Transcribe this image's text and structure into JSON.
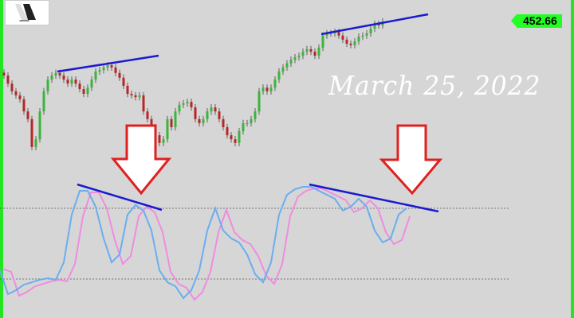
{
  "chart_data": {
    "type": "candlestick",
    "last_price": "452.66",
    "closes": [
      437.9,
      435.7,
      433.6,
      432.5,
      431.4,
      428.1,
      426.0,
      418.4,
      420.5,
      428.1,
      433.6,
      436.8,
      437.9,
      438.6,
      437.9,
      436.8,
      435.7,
      436.8,
      435.7,
      434.2,
      432.9,
      434.6,
      436.8,
      439.0,
      439.4,
      440.1,
      440.7,
      440.1,
      438.6,
      437.3,
      435.1,
      432.9,
      432.5,
      432.0,
      432.5,
      428.1,
      426.0,
      423.8,
      421.6,
      419.5,
      420.5,
      426.0,
      423.8,
      428.1,
      429.9,
      430.3,
      430.7,
      429.2,
      426.0,
      424.9,
      426.0,
      428.1,
      429.2,
      428.1,
      426.0,
      423.8,
      421.6,
      420.5,
      419.5,
      422.7,
      424.9,
      424.9,
      426.0,
      428.1,
      433.6,
      434.6,
      433.6,
      434.6,
      436.8,
      439.0,
      440.1,
      441.2,
      442.2,
      442.9,
      443.3,
      444.4,
      445.1,
      444.4,
      443.3,
      445.5,
      448.8,
      449.4,
      449.4,
      449.8,
      448.8,
      447.7,
      446.6,
      446.2,
      447.2,
      448.5,
      448.8,
      449.4,
      450.7,
      452.0,
      451.6,
      452.66
    ],
    "oscillator": {
      "type": "stochastic",
      "ylim": [
        0,
        100
      ],
      "levels": [
        80,
        20
      ],
      "k": [
        27.5,
        7.4,
        10.7,
        15.4,
        17.4,
        19.5,
        20.8,
        19.5,
        34.2,
        74.5,
        94.6,
        94.6,
        81.2,
        54.4,
        34.2,
        40.9,
        74.5,
        82.6,
        77.9,
        61.1,
        27.5,
        17.4,
        14.1,
        4.0,
        10.7,
        27.5,
        61.1,
        79.9,
        61.1,
        54.4,
        51.0,
        40.9,
        24.2,
        17.4,
        34.2,
        74.5,
        91.3,
        96.0,
        98.0,
        98.0,
        94.6,
        91.3,
        87.9,
        77.9,
        81.2,
        87.9,
        81.2,
        61.1,
        51.0,
        54.4,
        74.5,
        79.9
      ],
      "d": [
        30.0,
        27.5,
        7.4,
        10.7,
        15.4,
        17.4,
        19.5,
        20.8,
        19.5,
        34.2,
        74.5,
        94.6,
        94.6,
        81.2,
        54.4,
        34.2,
        40.9,
        74.5,
        82.6,
        77.9,
        61.1,
        27.5,
        17.4,
        14.1,
        4.0,
        10.7,
        27.5,
        61.1,
        79.9,
        61.1,
        54.4,
        51.0,
        40.9,
        24.2,
        17.4,
        34.2,
        74.5,
        91.3,
        96.0,
        98.0,
        98.0,
        94.6,
        91.3,
        87.9,
        77.9,
        81.2,
        87.9,
        81.2,
        61.1,
        51.0,
        54.4,
        74.5
      ]
    },
    "annotations": {
      "date_text": "March 25, 2022"
    },
    "colors": {
      "up": "#3cb43c",
      "down": "#b42828",
      "k_line": "#6aaef0",
      "d_line": "#f08ce0",
      "trendline": "#1a1ad0",
      "arrow": "#e02020",
      "price_tag": "#22ff22",
      "border": "#22e622"
    }
  }
}
